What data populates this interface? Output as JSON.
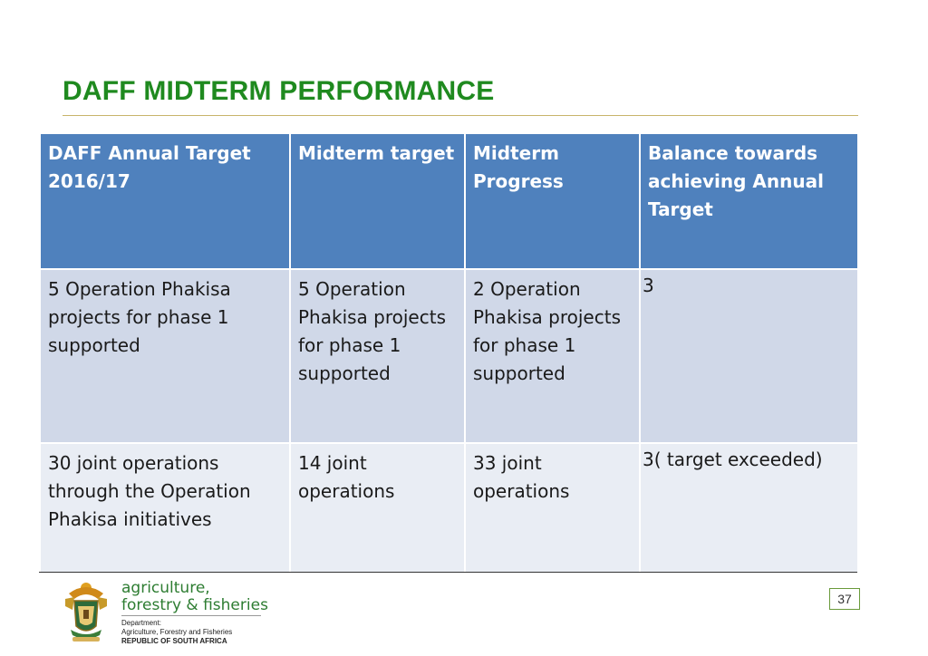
{
  "slide": {
    "title": "DAFF MIDTERM PERFORMANCE",
    "page_number": "37"
  },
  "table": {
    "headers": [
      "DAFF Annual Target 2016/17",
      "Midterm target",
      "Midterm Progress",
      "Balance  towards achieving Annual Target"
    ],
    "rows": [
      {
        "annual_target": "5 Operation Phakisa projects for phase 1 supported",
        "midterm_target": "5 Operation Phakisa projects for phase 1 supported",
        "midterm_progress": "2  Operation Phakisa projects for phase 1 supported",
        "balance": "3"
      },
      {
        "annual_target": "30 joint operations through the Operation Phakisa initiatives",
        "midterm_target": "14 joint operations",
        "midterm_progress": "33 joint operations",
        "balance": "3( target exceeded)"
      }
    ]
  },
  "footer": {
    "org_name_line1": "agriculture,",
    "org_name_line2": "forestry & fisheries",
    "dept_label": "Department:",
    "dept_name": "Agriculture, Forestry and Fisheries",
    "country": "REPUBLIC OF SOUTH AFRICA"
  },
  "icons": {
    "crest": "coat-of-arms-icon"
  },
  "colors": {
    "title": "#1f8a1f",
    "header_fill": "#4f81bd",
    "row1_fill": "#d0d8e8",
    "row2_fill": "#e9edf4",
    "org_text": "#2e7d32"
  }
}
